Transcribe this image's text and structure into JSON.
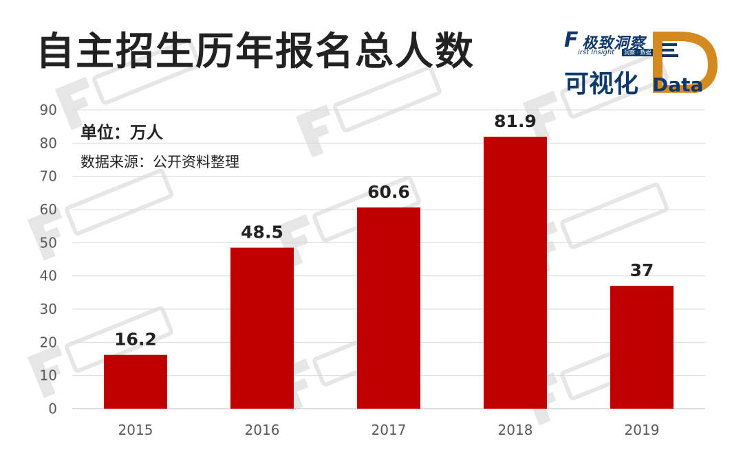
{
  "title": "自主招生历年报名总人数",
  "logo": {
    "brand_letter": "F",
    "brand_cn": "极致洞察",
    "brand_en": "irst Insight",
    "brand_sub": "洞察 · 数据",
    "viz_text": "可视化",
    "data_word": "Data"
  },
  "unit_label": "单位：万人",
  "source_label": "数据来源：公开资料整理",
  "colors": {
    "bar": "#c00000",
    "grid": "#d9d9d9",
    "axis_text": "#595959",
    "watermark": "#e6e6e6"
  },
  "chart_data": {
    "type": "bar",
    "categories": [
      "2015",
      "2016",
      "2017",
      "2018",
      "2019"
    ],
    "values": [
      16.2,
      48.5,
      60.6,
      81.9,
      37
    ],
    "data_labels": [
      "16.2",
      "48.5",
      "60.6",
      "81.9",
      "37"
    ],
    "y_ticks": [
      "0",
      "10",
      "20",
      "30",
      "40",
      "50",
      "60",
      "70",
      "80",
      "90"
    ],
    "ylim": [
      0,
      90
    ],
    "grid": true,
    "title": "自主招生历年报名总人数",
    "xlabel": "",
    "ylabel": ""
  }
}
